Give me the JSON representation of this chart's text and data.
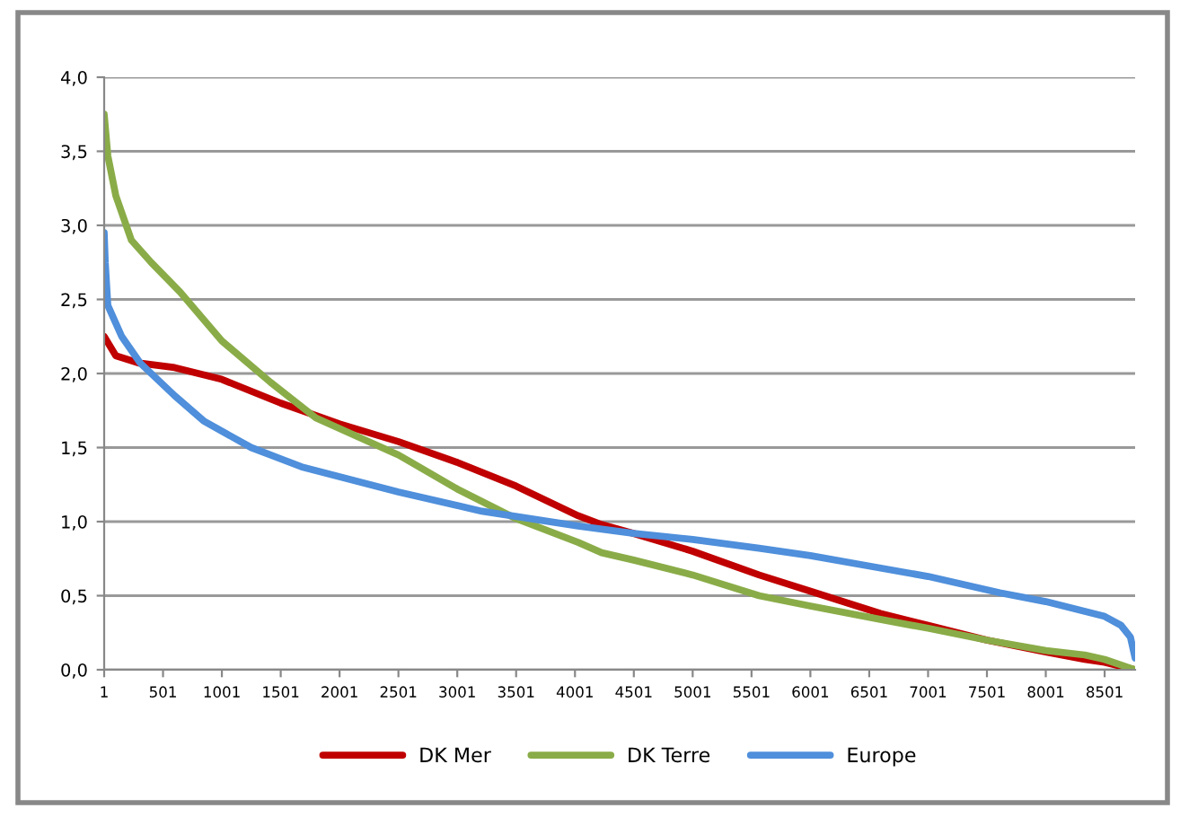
{
  "chart_data": {
    "type": "line",
    "xlim": [
      1,
      8760
    ],
    "xticks": [
      1,
      501,
      1001,
      1501,
      2001,
      2501,
      3001,
      3501,
      4001,
      4501,
      5001,
      5501,
      6001,
      6501,
      7001,
      7501,
      8001,
      8501
    ],
    "ylim": [
      0,
      4
    ],
    "yticks": [
      {
        "value": 0,
        "label": "0,0"
      },
      {
        "value": 0.5,
        "label": "0,5"
      },
      {
        "value": 1,
        "label": "1,0"
      },
      {
        "value": 1.5,
        "label": "1,5"
      },
      {
        "value": 2,
        "label": "2,0"
      },
      {
        "value": 2.5,
        "label": "2,5"
      },
      {
        "value": 3,
        "label": "3,0"
      },
      {
        "value": 3.5,
        "label": "3,5"
      },
      {
        "value": 4,
        "label": "4,0"
      }
    ],
    "grid": "y",
    "legend": "bottom",
    "marker": "none",
    "line_style": "solid",
    "series": [
      {
        "name": "DK Mer",
        "color": "#c00000",
        "x": [
          1,
          100,
          300,
          600,
          1001,
          1501,
          2001,
          2501,
          3001,
          3501,
          4028,
          4228,
          4501,
          5001,
          5565,
          6001,
          6595,
          7001,
          7501,
          8001,
          8332,
          8501,
          8760
        ],
        "values": [
          2.25,
          2.12,
          2.07,
          2.04,
          1.96,
          1.8,
          1.66,
          1.54,
          1.4,
          1.24,
          1.04,
          0.98,
          0.92,
          0.8,
          0.64,
          0.53,
          0.38,
          0.3,
          0.2,
          0.12,
          0.07,
          0.05,
          0.0
        ]
      },
      {
        "name": "DK Terre",
        "color": "#8aac48",
        "x": [
          1,
          32,
          100,
          232,
          400,
          646,
          1001,
          1415,
          1800,
          2501,
          3001,
          3501,
          4028,
          4228,
          4501,
          5001,
          5565,
          6001,
          6595,
          7001,
          7501,
          8001,
          8332,
          8501,
          8760
        ],
        "values": [
          3.75,
          3.47,
          3.2,
          2.9,
          2.75,
          2.55,
          2.22,
          1.94,
          1.7,
          1.45,
          1.22,
          1.02,
          0.86,
          0.79,
          0.74,
          0.64,
          0.5,
          0.43,
          0.34,
          0.28,
          0.2,
          0.13,
          0.1,
          0.07,
          0.0
        ]
      },
      {
        "name": "Europe",
        "color": "#4f8fdb",
        "x": [
          1,
          10,
          32,
          150,
          308,
          600,
          846,
          1250,
          1677,
          2501,
          3210,
          4028,
          4501,
          5001,
          5565,
          6001,
          6501,
          7001,
          7610,
          8001,
          8501,
          8640,
          8720,
          8760
        ],
        "values": [
          2.95,
          2.75,
          2.46,
          2.25,
          2.07,
          1.85,
          1.68,
          1.5,
          1.37,
          1.2,
          1.07,
          0.97,
          0.92,
          0.88,
          0.82,
          0.77,
          0.7,
          0.63,
          0.52,
          0.46,
          0.36,
          0.3,
          0.22,
          0.08
        ]
      }
    ]
  }
}
